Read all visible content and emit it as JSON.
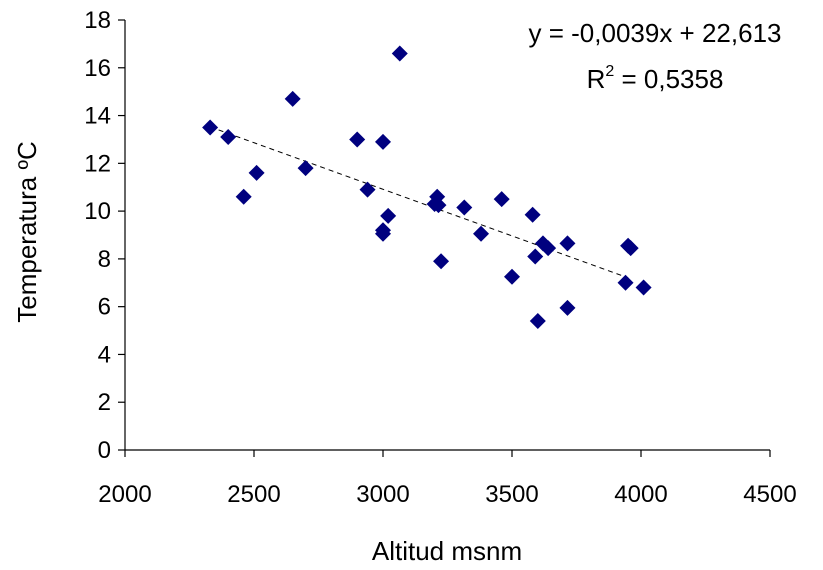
{
  "chart_data": {
    "type": "scatter",
    "xlabel": "Altitud msnm",
    "ylabel": "Temperatura ºC",
    "xlim": [
      2000,
      4500
    ],
    "ylim": [
      0,
      18
    ],
    "xticks": [
      "2000",
      "2500",
      "3000",
      "3500",
      "4000",
      "4500"
    ],
    "yticks": [
      "0",
      "2",
      "4",
      "6",
      "8",
      "10",
      "12",
      "14",
      "16",
      "18"
    ],
    "grid": false,
    "marker_color": "#00007f",
    "trendline": {
      "equation_label": "y = -0,0039x + 22,613",
      "r2_prefix": "R",
      "r2_exponent": "2",
      "r2_value": " = 0,5358",
      "slope": -0.0039,
      "intercept": 22.613,
      "x_range": [
        2330,
        3950
      ],
      "style": "dashed"
    },
    "series": [
      {
        "points": [
          [
            2330,
            13.5
          ],
          [
            2400,
            13.1
          ],
          [
            2460,
            10.6
          ],
          [
            2510,
            11.6
          ],
          [
            2650,
            14.7
          ],
          [
            2700,
            11.8
          ],
          [
            2900,
            13.0
          ],
          [
            2940,
            10.9
          ],
          [
            3000,
            12.9
          ],
          [
            3000,
            9.2
          ],
          [
            3000,
            9.05
          ],
          [
            3020,
            9.8
          ],
          [
            3065,
            16.6
          ],
          [
            3200,
            10.3
          ],
          [
            3210,
            10.6
          ],
          [
            3215,
            10.25
          ],
          [
            3225,
            7.9
          ],
          [
            3315,
            10.15
          ],
          [
            3380,
            9.05
          ],
          [
            3460,
            10.5
          ],
          [
            3500,
            7.25
          ],
          [
            3580,
            9.85
          ],
          [
            3590,
            8.1
          ],
          [
            3600,
            5.4
          ],
          [
            3620,
            8.65
          ],
          [
            3640,
            8.45
          ],
          [
            3715,
            8.65
          ],
          [
            3715,
            5.95
          ],
          [
            3940,
            7.0
          ],
          [
            3950,
            8.55
          ],
          [
            3960,
            8.45
          ],
          [
            4010,
            6.8
          ]
        ]
      }
    ]
  }
}
